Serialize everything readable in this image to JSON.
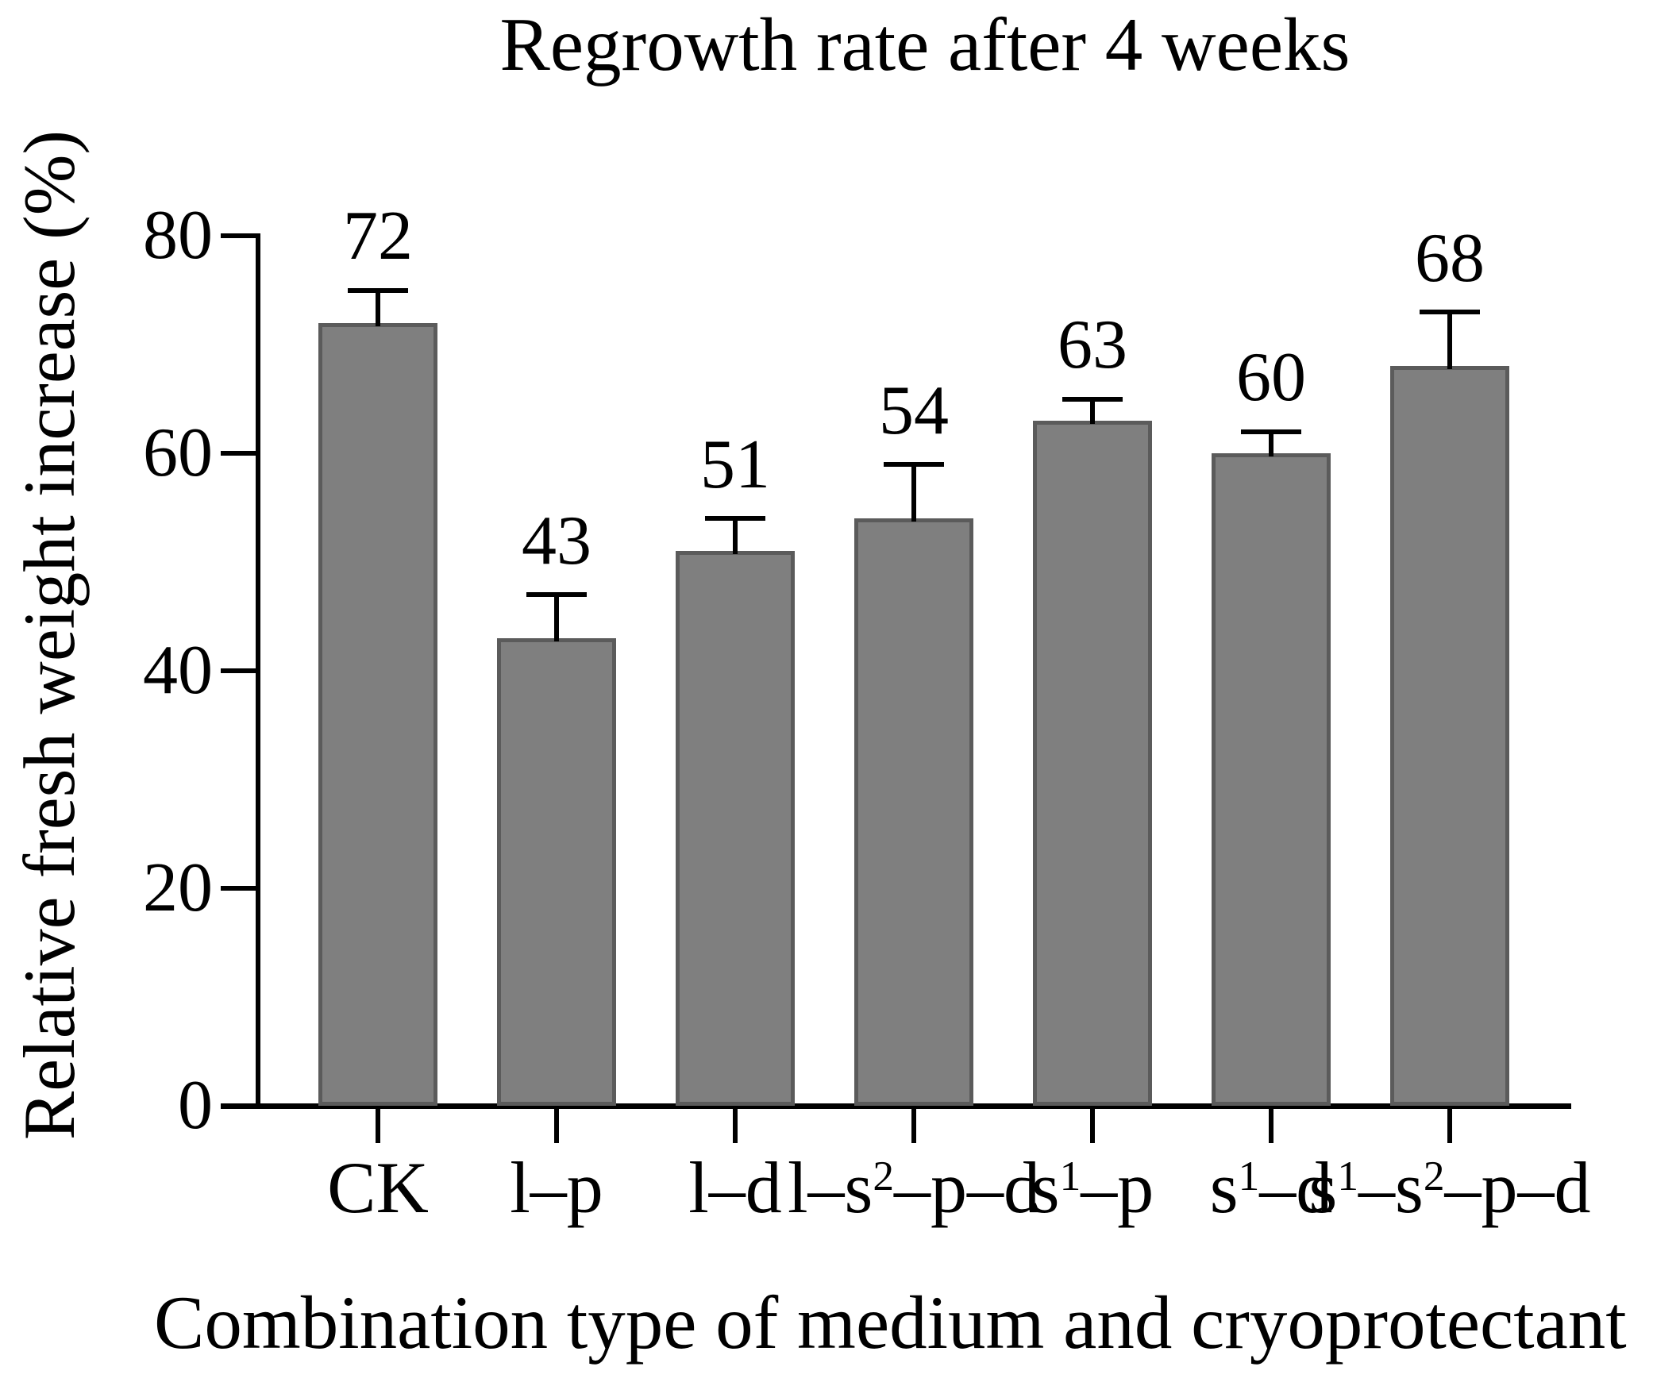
{
  "figure": {
    "title": "Regrowth rate after 4 weeks",
    "x_axis_title": "Combination type of medium and cryoprotectant",
    "y_axis_title": "Relative fresh weight increase (%)"
  },
  "chart_data": {
    "type": "bar",
    "title": "Regrowth rate after 4 weeks",
    "xlabel": "Combination type of medium and cryoprotectant",
    "ylabel": "Relative fresh weight increase (%)",
    "categories": [
      "CK",
      "l–p",
      "l–d",
      "l–s²–p–d",
      "s¹–p",
      "s¹–d",
      "s¹–s²–p–d"
    ],
    "values": [
      72,
      43,
      51,
      54,
      63,
      60,
      68
    ],
    "bar_labels": [
      "72",
      "43",
      "51",
      "54",
      "63",
      "60",
      "68"
    ],
    "errors_plus": [
      3,
      4,
      3,
      5,
      2,
      2,
      5
    ],
    "ylim": [
      0,
      80
    ],
    "yticks": [
      0,
      20,
      40,
      60,
      80
    ],
    "grid": false,
    "legend": null,
    "bar_fill": "#7f7f7f",
    "bar_edge": "#5b5b5b",
    "axis_color": "#000000",
    "categories_rich": [
      [
        {
          "t": "CK"
        }
      ],
      [
        {
          "t": "l–p"
        }
      ],
      [
        {
          "t": "l–d"
        }
      ],
      [
        {
          "t": "l–s"
        },
        {
          "t": "2",
          "sup": true
        },
        {
          "t": "–p–d"
        }
      ],
      [
        {
          "t": "s"
        },
        {
          "t": "1",
          "sup": true
        },
        {
          "t": "–p"
        }
      ],
      [
        {
          "t": "s"
        },
        {
          "t": "1",
          "sup": true
        },
        {
          "t": "–d"
        }
      ],
      [
        {
          "t": "s"
        },
        {
          "t": "1",
          "sup": true
        },
        {
          "t": "–s"
        },
        {
          "t": "2",
          "sup": true
        },
        {
          "t": "–p–d"
        }
      ]
    ]
  }
}
